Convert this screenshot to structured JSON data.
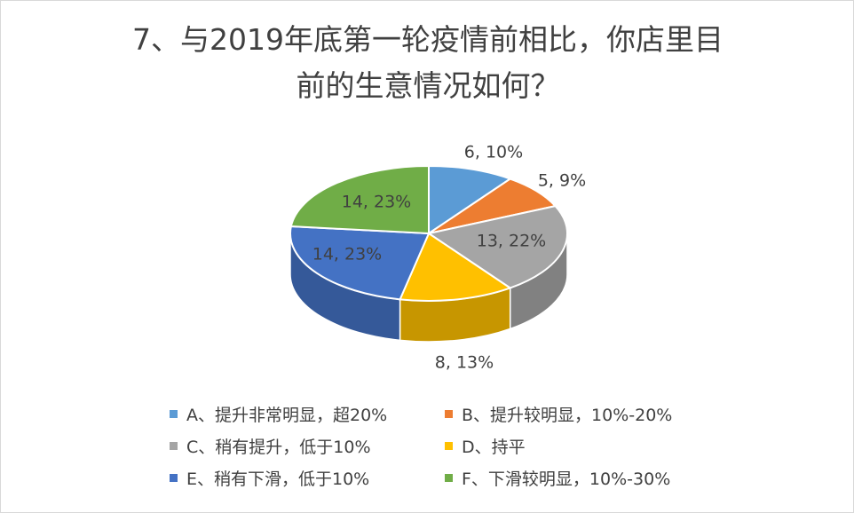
{
  "chart_data": {
    "type": "pie",
    "style": "3d",
    "title_lines": [
      "7、与2019年底第一轮疫情前相比，你店里目",
      "前的生意情况如何？"
    ],
    "start_angle": "12 o'clock",
    "direction": "clockwise",
    "slices": [
      {
        "legend": "A、提升非常明显，超20%",
        "value": 6,
        "label": "6, 10%",
        "color": "#5B9BD5"
      },
      {
        "legend": "B、提升较明显，10%-20%",
        "value": 5,
        "label": "5, 9%",
        "color": "#ED7D31"
      },
      {
        "legend": "C、稍有提升，低于10%",
        "value": 13,
        "label": "13, 22%",
        "color": "#A5A5A5"
      },
      {
        "legend": "D、持平",
        "value": 8,
        "label": "8, 13%",
        "color": "#FFC000"
      },
      {
        "legend": "E、稍有下滑，低于10%",
        "value": 14,
        "label": "14, 23%",
        "color": "#4472C4"
      },
      {
        "legend": "F、下滑较明显，10%-30%",
        "value": 14,
        "label": "14, 23%",
        "color": "#70AD47"
      }
    ],
    "legend_position": "bottom"
  }
}
